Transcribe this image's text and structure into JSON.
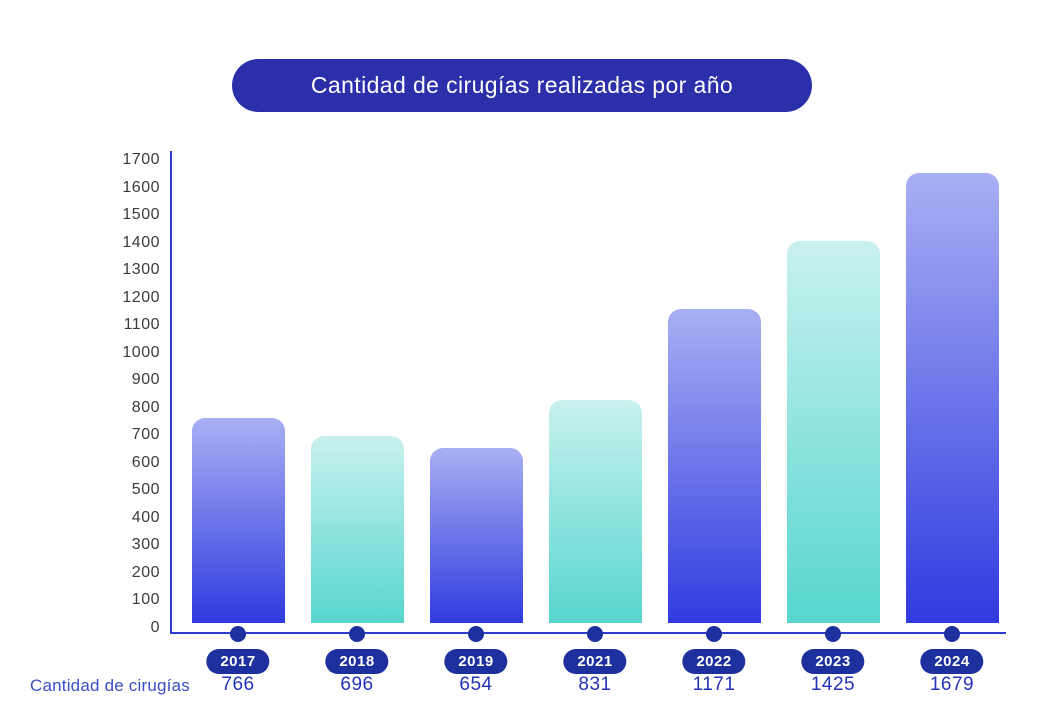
{
  "title": "Cantidad de cirugías realizadas por año",
  "x_axis_caption": "Cantidad de cirugías",
  "chart_data": {
    "type": "bar",
    "title": "Cantidad de cirugías realizadas por año",
    "categories": [
      "2017",
      "2018",
      "2019",
      "2021",
      "2022",
      "2023",
      "2024"
    ],
    "values": [
      766,
      696,
      654,
      831,
      1171,
      1425,
      1679
    ],
    "series_label": "Cantidad de cirugías",
    "xlabel": "",
    "ylabel": "",
    "ylim": [
      0,
      1700
    ],
    "ytick_step": 100,
    "yticks": [
      0,
      100,
      200,
      300,
      400,
      500,
      600,
      700,
      800,
      900,
      1000,
      1100,
      1200,
      1300,
      1400,
      1500,
      1600,
      1700
    ],
    "grid": false,
    "legend": "none",
    "bar_color_pattern": [
      "blue",
      "teal",
      "blue",
      "teal",
      "blue",
      "teal",
      "blue"
    ]
  },
  "colors": {
    "title_pill_bg": "#2b2fa9",
    "title_text": "#ffffff",
    "bar_blue_top": "#a9aff4",
    "bar_blue_bottom": "#2f3bdf",
    "bar_teal_top": "#c9f1ee",
    "bar_teal_bottom": "#56d6ce",
    "axis_line": "#2e3cd0",
    "dot_fill": "#1e2f9e",
    "year_pill_bg": "#1e2f9e",
    "year_pill_text": "#ffffff",
    "value_text": "#2433b8",
    "caption_text": "#3a4fc1",
    "tick_label_text": "#3c3c3c"
  }
}
